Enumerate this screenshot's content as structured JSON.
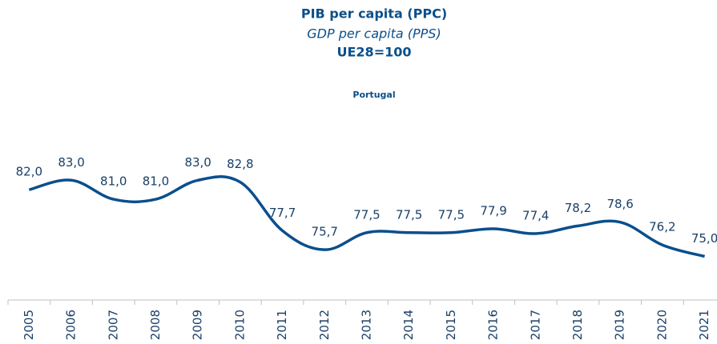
{
  "chart_data": {
    "type": "line",
    "title": "PIB per capita (PPC)",
    "subtitle": "GDP per capita (PPS)",
    "note": "UE28=100",
    "categories": [
      "2005",
      "2006",
      "2007",
      "2008",
      "2009",
      "2010",
      "2011",
      "2012",
      "2013",
      "2014",
      "2015",
      "2016",
      "2017",
      "2018",
      "2019",
      "2020",
      "2021"
    ],
    "series": [
      {
        "name": "Portugal",
        "color": "#0a4f8c",
        "values": [
          82.0,
          83.0,
          81.0,
          81.0,
          83.0,
          82.8,
          77.7,
          75.7,
          77.5,
          77.5,
          77.5,
          77.9,
          77.4,
          78.2,
          78.6,
          76.2,
          75.0
        ],
        "value_labels": [
          "82,0",
          "83,0",
          "81,0",
          "81,0",
          "83,0",
          "82,8",
          "77,7",
          "75,7",
          "77,5",
          "77,5",
          "77,5",
          "77,9",
          "77,4",
          "78,2",
          "78,6",
          "76,2",
          "75,0"
        ]
      }
    ],
    "ylim": [
      70,
      90
    ]
  }
}
